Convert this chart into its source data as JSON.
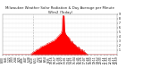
{
  "title": "Milwaukee Weather Solar Radiation & Day Average per Minute W/m2 (Today)",
  "bg_color": "#ffffff",
  "plot_bg_color": "#ffffff",
  "fill_color": "#ff0000",
  "line_color": "#dd0000",
  "grid_color": "#cccccc",
  "ylim": [
    0,
    900
  ],
  "ytick_labels": [
    "1",
    "2",
    "3",
    "4",
    "5",
    "6",
    "7",
    "8",
    "9"
  ],
  "ytick_values": [
    100,
    200,
    300,
    400,
    500,
    600,
    700,
    800,
    900
  ],
  "num_points": 1440,
  "sunrise": 340,
  "sunset": 1070,
  "peak_minute": 760,
  "peak_value": 870,
  "dashed_line_x": 380,
  "title_fontsize": 2.8,
  "tick_fontsize": 2.2,
  "figwidth": 1.6,
  "figheight": 0.87,
  "dpi": 100
}
